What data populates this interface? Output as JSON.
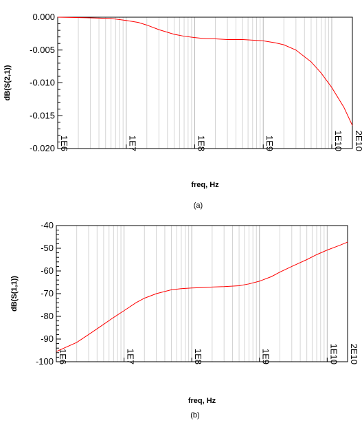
{
  "chart_data": [
    {
      "type": "line",
      "panel_label": "(a)",
      "xlabel": "freq, Hz",
      "ylabel": "dB(S(2,1))",
      "x_scale": "log",
      "xlim": [
        1000000.0,
        20000000000.0
      ],
      "ylim": [
        -0.02,
        0.0
      ],
      "xticks": [
        1000000.0,
        10000000.0,
        100000000.0,
        1000000000.0,
        10000000000.0,
        20000000000.0
      ],
      "xtick_labels": [
        "1E6",
        "1E7",
        "1E8",
        "1E9",
        "1E10",
        "2E10"
      ],
      "yticks": [
        0.0,
        -0.005,
        -0.01,
        -0.015,
        -0.02
      ],
      "ytick_labels": [
        "0.000",
        "-0.005",
        "-0.010",
        "-0.015",
        "-0.020"
      ],
      "grid": true,
      "series_color": "#ff0000",
      "series": [
        {
          "x": [
            1000000.0,
            3000000.0,
            6000000.0,
            10000000.0,
            15000000.0,
            20000000.0,
            30000000.0,
            50000000.0,
            70000000.0,
            100000000.0,
            150000000.0,
            200000000.0,
            300000000.0,
            500000000.0,
            700000000.0,
            1000000000.0,
            1500000000.0,
            2000000000.0,
            3000000000.0,
            5000000000.0,
            7000000000.0,
            10000000000.0,
            15000000000.0,
            20000000000.0
          ],
          "y": [
            0.0,
            -0.0001,
            -0.0002,
            -0.0005,
            -0.0008,
            -0.0012,
            -0.0019,
            -0.0026,
            -0.0029,
            -0.0031,
            -0.0033,
            -0.0033,
            -0.0034,
            -0.0034,
            -0.0035,
            -0.0036,
            -0.0039,
            -0.0042,
            -0.005,
            -0.0068,
            -0.0085,
            -0.0107,
            -0.0137,
            -0.0165
          ]
        }
      ]
    },
    {
      "type": "line",
      "panel_label": "(b)",
      "xlabel": "freq, Hz",
      "ylabel": "dB(S(1,1))",
      "x_scale": "log",
      "xlim": [
        1000000.0,
        20000000000.0
      ],
      "ylim": [
        -100,
        -40
      ],
      "xticks": [
        1000000.0,
        10000000.0,
        100000000.0,
        1000000000.0,
        10000000000.0,
        20000000000.0
      ],
      "xtick_labels": [
        "1E6",
        "1E7",
        "1E8",
        "1E9",
        "1E10",
        "2E10"
      ],
      "yticks": [
        -40,
        -50,
        -60,
        -70,
        -80,
        -90,
        -100
      ],
      "ytick_labels": [
        "-40",
        "-50",
        "-60",
        "-70",
        "-80",
        "-90",
        "-100"
      ],
      "grid": true,
      "series_color": "#ff0000",
      "series": [
        {
          "x": [
            1000000.0,
            2000000.0,
            3000000.0,
            5000000.0,
            7000000.0,
            10000000.0,
            15000000.0,
            20000000.0,
            30000000.0,
            50000000.0,
            70000000.0,
            100000000.0,
            150000000.0,
            200000000.0,
            300000000.0,
            500000000.0,
            700000000.0,
            1000000000.0,
            1500000000.0,
            2000000000.0,
            3000000000.0,
            5000000000.0,
            7000000000.0,
            10000000000.0,
            15000000000.0,
            20000000000.0
          ],
          "y": [
            -95.5,
            -91.5,
            -88.0,
            -83.5,
            -80.5,
            -77.5,
            -74.0,
            -72.0,
            -70.0,
            -68.3,
            -67.8,
            -67.5,
            -67.3,
            -67.1,
            -66.9,
            -66.5,
            -65.7,
            -64.5,
            -62.5,
            -60.5,
            -58.0,
            -55.0,
            -52.8,
            -50.8,
            -48.8,
            -47.3
          ]
        }
      ]
    }
  ]
}
